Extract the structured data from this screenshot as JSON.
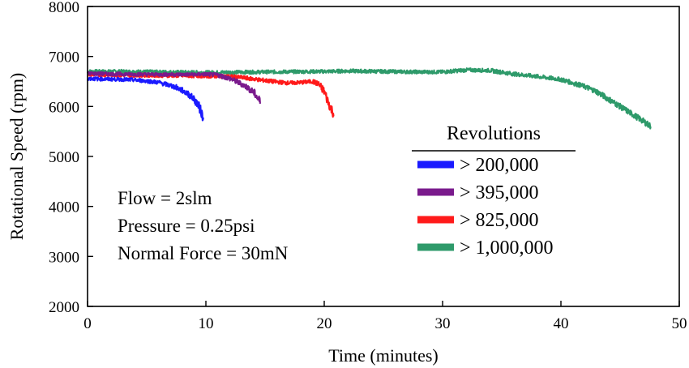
{
  "chart_data": {
    "type": "line",
    "title": "",
    "xlabel": "Time (minutes)",
    "ylabel": "Rotational Speed (rpm)",
    "xlim": [
      0,
      50
    ],
    "ylim": [
      2000,
      8000
    ],
    "xticks": [
      0,
      10,
      20,
      30,
      40,
      50
    ],
    "yticks": [
      2000,
      3000,
      4000,
      5000,
      6000,
      7000,
      8000
    ],
    "grid": false,
    "legend": {
      "title": "Revolutions",
      "placement": "right-center"
    },
    "annotations": [
      "Flow = 2slm",
      "Pressure = 0.25psi",
      "Normal Force = 30mN"
    ],
    "series": [
      {
        "name": "> 200,000",
        "color": "#1a1aff",
        "x": [
          0,
          1,
          2,
          3,
          4,
          5,
          6,
          7,
          7.5,
          8,
          8.5,
          9,
          9.3,
          9.6,
          9.8
        ],
        "y": [
          6560,
          6550,
          6545,
          6540,
          6530,
          6510,
          6480,
          6420,
          6380,
          6320,
          6250,
          6150,
          6050,
          5900,
          5720
        ]
      },
      {
        "name": "> 395,000",
        "color": "#7a1a8c",
        "x": [
          0,
          2,
          4,
          6,
          8,
          9,
          10,
          11,
          12,
          12.5,
          13,
          13.5,
          14,
          14.3,
          14.6
        ],
        "y": [
          6660,
          6650,
          6645,
          6640,
          6640,
          6640,
          6645,
          6630,
          6560,
          6510,
          6450,
          6380,
          6290,
          6200,
          6080
        ]
      },
      {
        "name": "> 825,000",
        "color": "#ff1a1a",
        "x": [
          0,
          2,
          4,
          6,
          8,
          10,
          12,
          13,
          14,
          15,
          16,
          17,
          18,
          19,
          19.5,
          20,
          20.4,
          20.8
        ],
        "y": [
          6640,
          6630,
          6625,
          6620,
          6615,
          6610,
          6600,
          6580,
          6550,
          6520,
          6490,
          6470,
          6480,
          6500,
          6450,
          6300,
          6050,
          5850
        ]
      },
      {
        "name": "> 1,000,000",
        "color": "#2e9a6a",
        "x": [
          0,
          3,
          6,
          10,
          15,
          20,
          22,
          25,
          28,
          30,
          32,
          34,
          36,
          38,
          40,
          42,
          43,
          44,
          45,
          46,
          47,
          47.6
        ],
        "y": [
          6700,
          6700,
          6690,
          6680,
          6690,
          6700,
          6710,
          6700,
          6690,
          6690,
          6730,
          6720,
          6650,
          6600,
          6540,
          6400,
          6300,
          6150,
          6000,
          5850,
          5700,
          5600
        ]
      }
    ]
  }
}
